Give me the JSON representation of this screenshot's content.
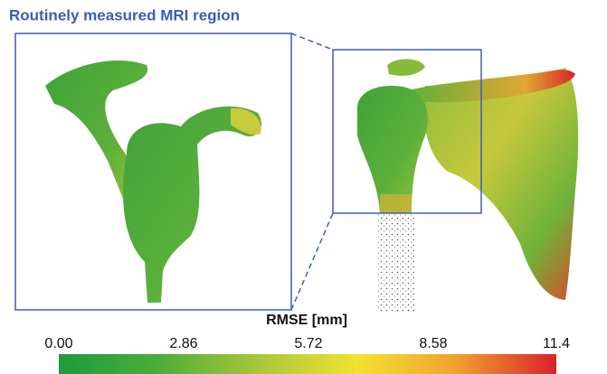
{
  "title": "Routinely measured MRI region",
  "colorbar": {
    "label": "RMSE [mm]",
    "lim": [
      0,
      11.4
    ],
    "ticks": [
      {
        "value": 0,
        "label": "0.00"
      },
      {
        "value": 2.86,
        "label": "2.86"
      },
      {
        "value": 5.72,
        "label": "5.72"
      },
      {
        "value": 8.58,
        "label": "8.58"
      },
      {
        "value": 11.4,
        "label": "11.4"
      }
    ],
    "colors": [
      "#1f9a3c",
      "#4cad3a",
      "#a8c63a",
      "#f2e232",
      "#f0a030",
      "#d8232a"
    ]
  }
}
